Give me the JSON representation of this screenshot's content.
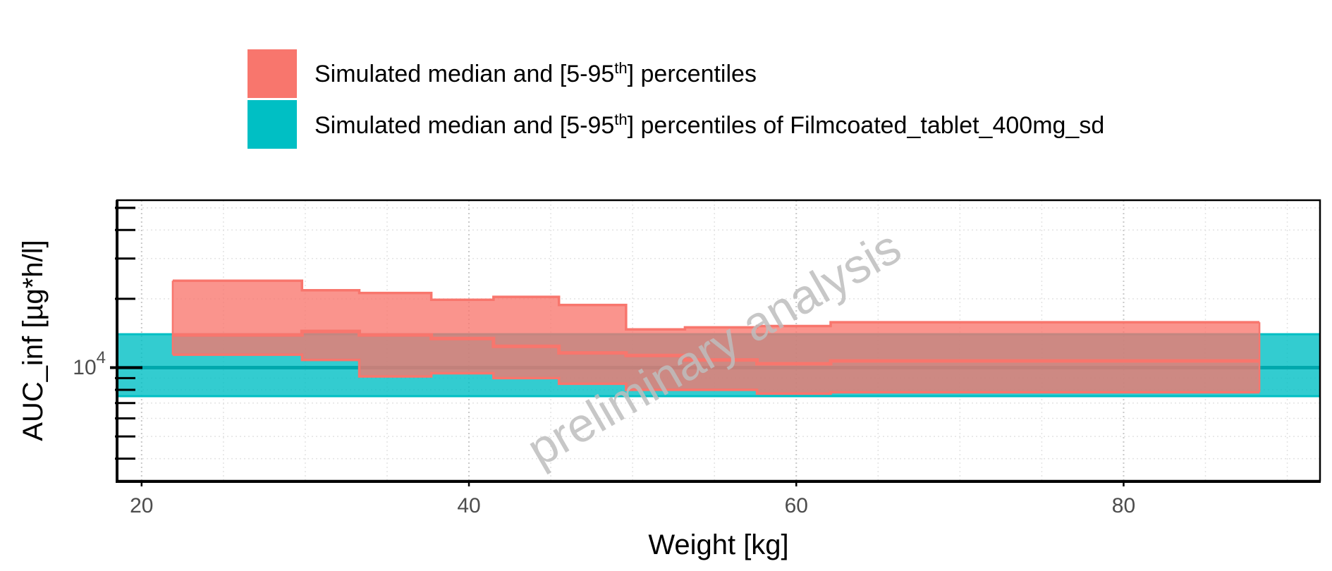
{
  "chart_data": {
    "type": "area",
    "title": "",
    "xlabel": "Weight [kg]",
    "ylabel": "AUC_inf [µg*h/l]",
    "xlim": [
      18.5,
      92
    ],
    "x_ticks": [
      20,
      40,
      60,
      80
    ],
    "y_scale": "log",
    "ylim": [
      3200,
      54000
    ],
    "y_tick_label": {
      "base": "10",
      "exponent": "4",
      "value": 10000
    },
    "grid": true,
    "legend_position": "top",
    "legend": [
      {
        "label_pre": "Simulated median and [5-95",
        "sup": "th",
        "label_post": "] percentiles",
        "color": "#F8766D"
      },
      {
        "label_pre": "Simulated median and [5-95",
        "sup": "th",
        "label_post": "] percentiles of Filmcoated_tablet_400mg_sd",
        "color": "#00BFC4"
      }
    ],
    "watermark": "preliminary analysis",
    "series": [
      {
        "name": "Simulated median and [5-95th] percentiles",
        "color": "#F8766D",
        "steps": [
          {
            "x0": 21.9,
            "x1": 29.8,
            "p5": 11400,
            "median": 13900,
            "p95": 24000
          },
          {
            "x0": 29.8,
            "x1": 33.3,
            "p5": 10800,
            "median": 14400,
            "p95": 21800
          },
          {
            "x0": 33.3,
            "x1": 37.7,
            "p5": 9150,
            "median": 13900,
            "p95": 21200
          },
          {
            "x0": 37.7,
            "x1": 41.5,
            "p5": 9450,
            "median": 13400,
            "p95": 19800
          },
          {
            "x0": 41.5,
            "x1": 45.5,
            "p5": 9000,
            "median": 12400,
            "p95": 20400
          },
          {
            "x0": 45.5,
            "x1": 49.6,
            "p5": 8500,
            "median": 11600,
            "p95": 18800
          },
          {
            "x0": 49.6,
            "x1": 53.2,
            "p5": 8000,
            "median": 11300,
            "p95": 14700
          },
          {
            "x0": 53.2,
            "x1": 57.6,
            "p5": 8000,
            "median": 10800,
            "p95": 15000
          },
          {
            "x0": 57.6,
            "x1": 62.1,
            "p5": 7700,
            "median": 10400,
            "p95": 15200
          },
          {
            "x0": 62.1,
            "x1": 88.3,
            "p5": 7800,
            "median": 10700,
            "p95": 15800
          }
        ]
      },
      {
        "name": "Simulated median and [5-95th] percentiles of Filmcoated_tablet_400mg_sd",
        "color": "#00BFC4",
        "x_range": [
          18.5,
          92
        ],
        "p5": 7500,
        "median": 10000,
        "p95": 14000
      }
    ]
  }
}
